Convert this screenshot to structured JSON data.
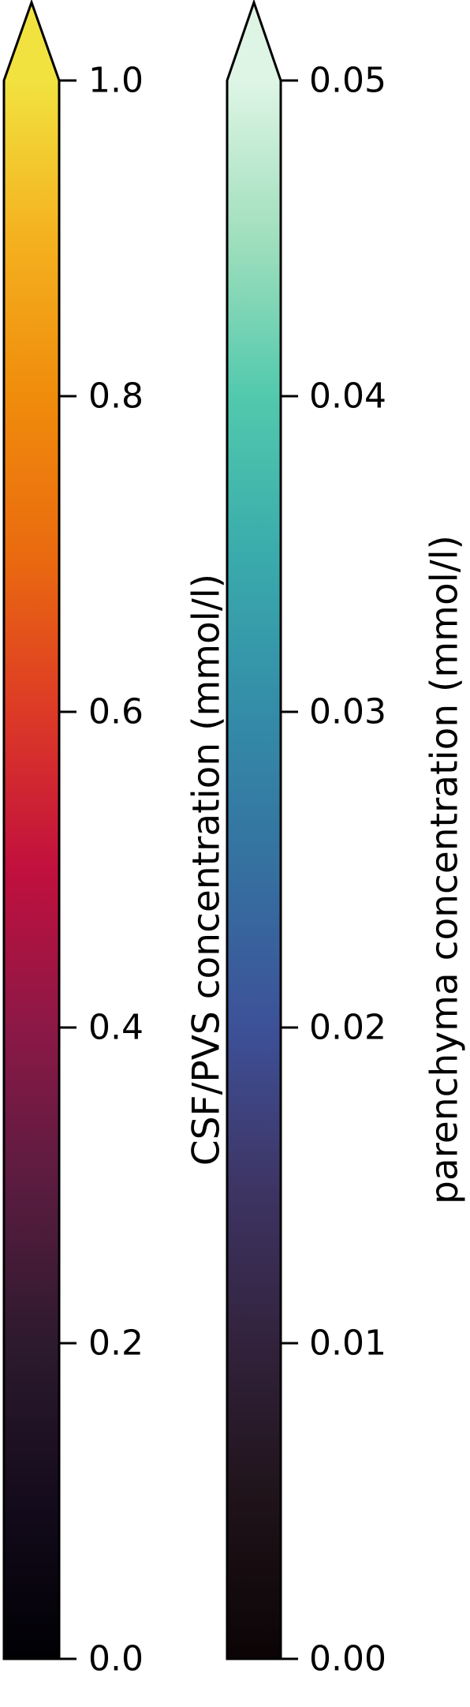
{
  "chart_data": [
    {
      "type": "colorbar",
      "colormap": "inferno-like",
      "extend": "max",
      "orientation": "vertical",
      "ylim": [
        0.0,
        1.0
      ],
      "ticks": [
        0.0,
        0.2,
        0.4,
        0.6,
        0.8,
        1.0
      ],
      "tick_labels": [
        "0.0",
        "0.2",
        "0.4",
        "0.6",
        "0.8",
        "1.0"
      ],
      "ylabel": "CSF/PVS concentration (mmol/l)",
      "color_stops": [
        {
          "value": 0.0,
          "color": "#000004"
        },
        {
          "value": 0.1,
          "color": "#140b1c"
        },
        {
          "value": 0.2,
          "color": "#2d1a2e"
        },
        {
          "value": 0.3,
          "color": "#5a1c40"
        },
        {
          "value": 0.4,
          "color": "#8c1846"
        },
        {
          "value": 0.5,
          "color": "#c1103e"
        },
        {
          "value": 0.6,
          "color": "#dd3a26"
        },
        {
          "value": 0.7,
          "color": "#ea6b0f"
        },
        {
          "value": 0.8,
          "color": "#f08c0c"
        },
        {
          "value": 0.9,
          "color": "#f4b11f"
        },
        {
          "value": 1.0,
          "color": "#f1e240"
        }
      ]
    },
    {
      "type": "colorbar",
      "colormap": "mako-like",
      "extend": "max",
      "orientation": "vertical",
      "ylim": [
        0.0,
        0.05
      ],
      "ticks": [
        0.0,
        0.01,
        0.02,
        0.03,
        0.04,
        0.05
      ],
      "tick_labels": [
        "0.00",
        "0.01",
        "0.02",
        "0.03",
        "0.04",
        "0.05"
      ],
      "ylabel": "parenchyma concentration (mmol/l)",
      "color_stops": [
        {
          "value": 0.0,
          "color": "#0b0405"
        },
        {
          "value": 0.005,
          "color": "#1f1319"
        },
        {
          "value": 0.01,
          "color": "#32223c"
        },
        {
          "value": 0.015,
          "color": "#3e3565"
        },
        {
          "value": 0.02,
          "color": "#3d5198"
        },
        {
          "value": 0.025,
          "color": "#3570a0"
        },
        {
          "value": 0.03,
          "color": "#338ca8"
        },
        {
          "value": 0.035,
          "color": "#3aabac"
        },
        {
          "value": 0.04,
          "color": "#52c9ad"
        },
        {
          "value": 0.045,
          "color": "#a0dfbd"
        },
        {
          "value": 0.05,
          "color": "#def5e5"
        }
      ]
    }
  ]
}
